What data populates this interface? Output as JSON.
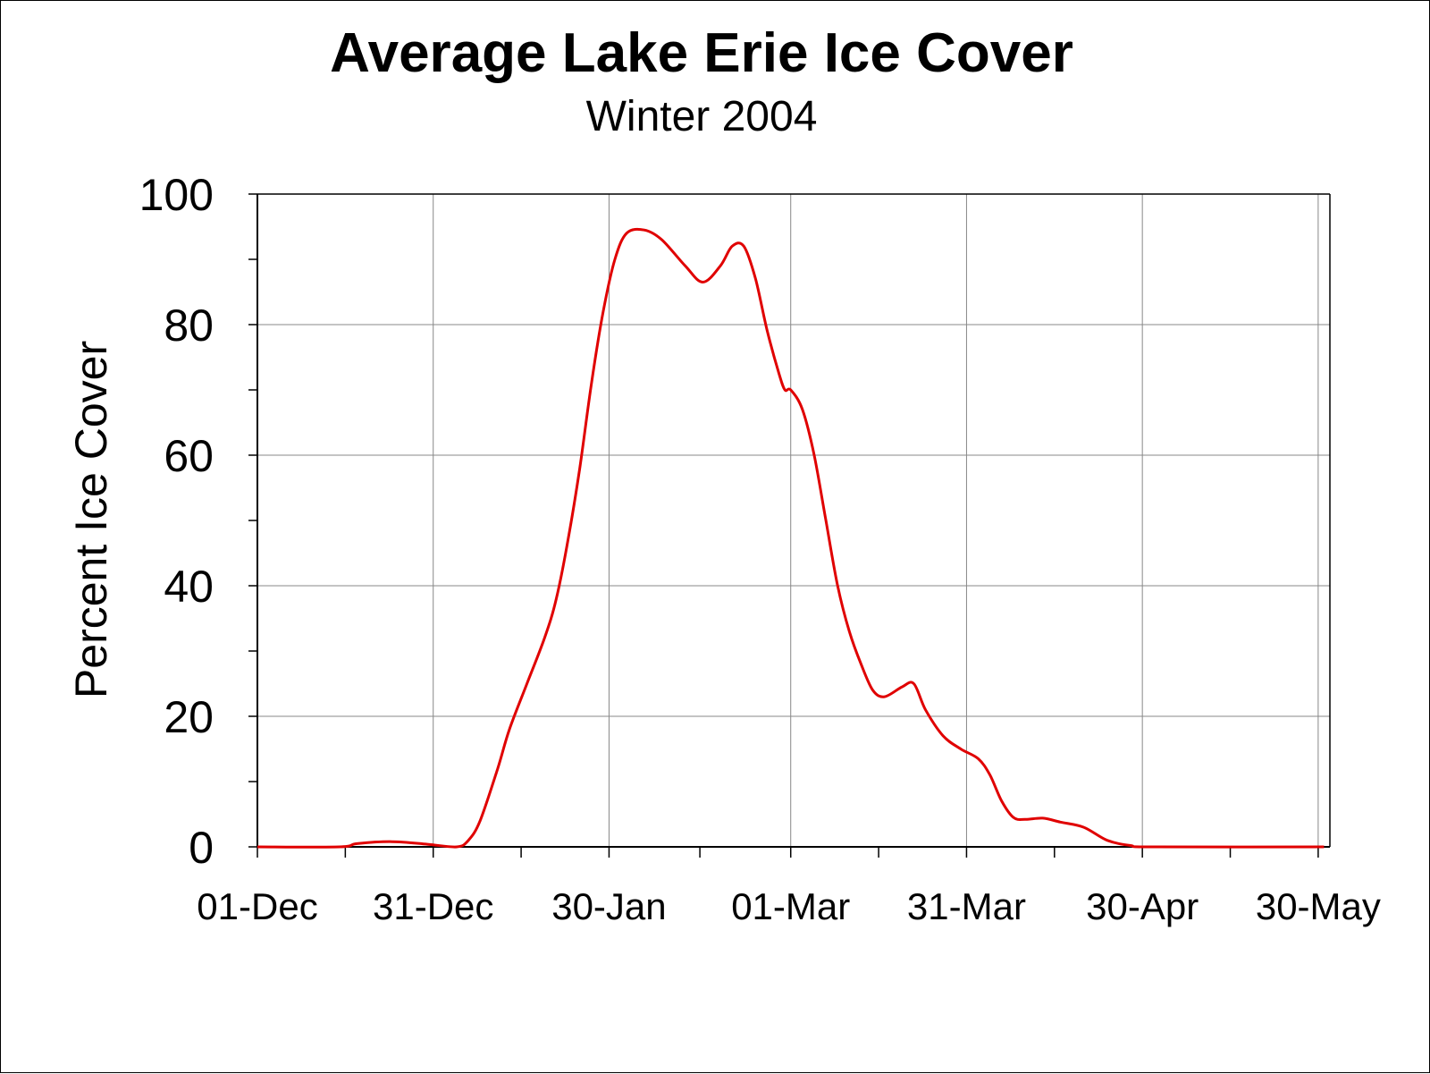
{
  "chart_data": {
    "type": "line",
    "title": "Average Lake Erie Ice Cover",
    "subtitle": "Winter 2004",
    "ylabel": "Percent Ice Cover",
    "xlabel": "",
    "ylim": [
      0,
      100
    ],
    "xlim": [
      "2003-12-01",
      "2004-06-01"
    ],
    "grid": true,
    "line_color": "#e00000",
    "x_ticks": [
      {
        "date": "2003-12-01",
        "label": "01-Dec"
      },
      {
        "date": "2003-12-31",
        "label": "31-Dec"
      },
      {
        "date": "2004-01-30",
        "label": "30-Jan"
      },
      {
        "date": "2004-03-01",
        "label": "01-Mar"
      },
      {
        "date": "2004-03-31",
        "label": "31-Mar"
      },
      {
        "date": "2004-04-30",
        "label": "30-Apr"
      },
      {
        "date": "2004-05-30",
        "label": "30-May"
      }
    ],
    "y_ticks": [
      {
        "value": 0,
        "label": "0"
      },
      {
        "value": 20,
        "label": "20"
      },
      {
        "value": 40,
        "label": "40"
      },
      {
        "value": 60,
        "label": "60"
      },
      {
        "value": 80,
        "label": "80"
      },
      {
        "value": 100,
        "label": "100"
      }
    ],
    "series": [
      {
        "points": [
          [
            "2003-12-01",
            0
          ],
          [
            "2003-12-15",
            0
          ],
          [
            "2003-12-18",
            0.5
          ],
          [
            "2003-12-24",
            0.8
          ],
          [
            "2003-12-30",
            0.4
          ],
          [
            "2004-01-04",
            0
          ],
          [
            "2004-01-06",
            1
          ],
          [
            "2004-01-08",
            4
          ],
          [
            "2004-01-11",
            12
          ],
          [
            "2004-01-13",
            18
          ],
          [
            "2004-01-16",
            25
          ],
          [
            "2004-01-19",
            32
          ],
          [
            "2004-01-21",
            38
          ],
          [
            "2004-01-23",
            47
          ],
          [
            "2004-01-25",
            58
          ],
          [
            "2004-01-27",
            71
          ],
          [
            "2004-01-29",
            82
          ],
          [
            "2004-01-31",
            90
          ],
          [
            "2004-02-02",
            94
          ],
          [
            "2004-02-05",
            94.5
          ],
          [
            "2004-02-08",
            93
          ],
          [
            "2004-02-12",
            89
          ],
          [
            "2004-02-15",
            86.5
          ],
          [
            "2004-02-18",
            89
          ],
          [
            "2004-02-20",
            92
          ],
          [
            "2004-02-22",
            92
          ],
          [
            "2004-02-24",
            87
          ],
          [
            "2004-02-26",
            79
          ],
          [
            "2004-02-28",
            72.5
          ],
          [
            "2004-02-29",
            70
          ],
          [
            "2004-03-01",
            70
          ],
          [
            "2004-03-03",
            67
          ],
          [
            "2004-03-05",
            60
          ],
          [
            "2004-03-07",
            50
          ],
          [
            "2004-03-09",
            40
          ],
          [
            "2004-03-11",
            33
          ],
          [
            "2004-03-13",
            28
          ],
          [
            "2004-03-15",
            24
          ],
          [
            "2004-03-17",
            23
          ],
          [
            "2004-03-20",
            24.5
          ],
          [
            "2004-03-22",
            25
          ],
          [
            "2004-03-24",
            21
          ],
          [
            "2004-03-27",
            17
          ],
          [
            "2004-03-30",
            15
          ],
          [
            "2004-04-02",
            13.5
          ],
          [
            "2004-04-04",
            11
          ],
          [
            "2004-04-06",
            7
          ],
          [
            "2004-04-08",
            4.5
          ],
          [
            "2004-04-10",
            4.2
          ],
          [
            "2004-04-13",
            4.4
          ],
          [
            "2004-04-16",
            3.8
          ],
          [
            "2004-04-20",
            3
          ],
          [
            "2004-04-24",
            1
          ],
          [
            "2004-04-28",
            0.2
          ],
          [
            "2004-05-02",
            0
          ],
          [
            "2004-05-31",
            0
          ]
        ]
      }
    ]
  }
}
